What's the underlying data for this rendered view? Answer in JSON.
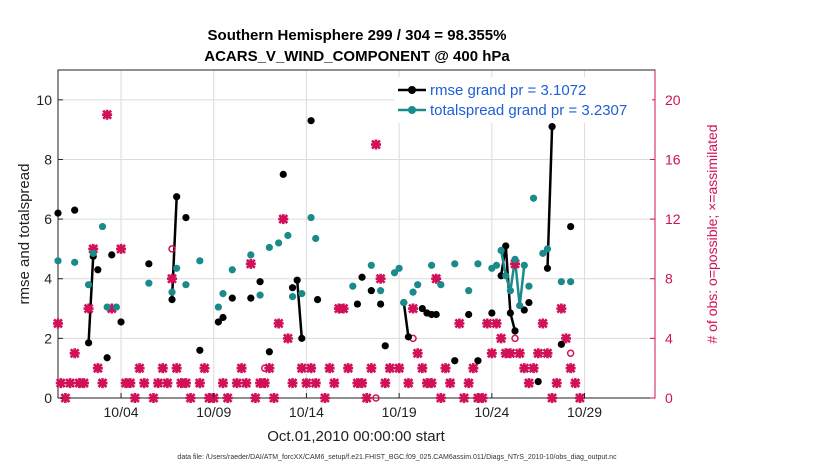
{
  "chart_data": {
    "type": "line",
    "title": "Southern Hemisphere 299 / 304 = 98.355%",
    "subtitle": "ACARS_V_WIND_COMPONENT @ 400 hPa",
    "xlabel": "Oct.01,2010 00:00:00 start",
    "ylabel": "rmse and totalspread",
    "y2label": "# of obs: o=possible; ×=assimilated",
    "footnote": "data file: /Users/raeder/DAI/ATM_forcXX/CAM6_setup/f.e21.FHIST_BGC.f09_025.CAM6assim.011/Diags_NTrS_2010-10/obs_diag_output.nc",
    "xlim": [
      0.6,
      32.8
    ],
    "ylim": [
      0,
      11
    ],
    "y2lim": [
      0,
      22
    ],
    "x_ticks": [
      {
        "x": 4,
        "label": "10/04"
      },
      {
        "x": 9,
        "label": "10/09"
      },
      {
        "x": 14,
        "label": "10/14"
      },
      {
        "x": 19,
        "label": "10/19"
      },
      {
        "x": 24,
        "label": "10/24"
      },
      {
        "x": 29,
        "label": "10/29"
      }
    ],
    "y_ticks": [
      0,
      2,
      4,
      6,
      8,
      10
    ],
    "y2_ticks": [
      0,
      4,
      8,
      12,
      16,
      20
    ],
    "grid": true,
    "legend_position": "top-right",
    "series": [
      {
        "name": "rmse grand pr = 3.1072",
        "color": "#000000",
        "marker": "circle",
        "points": [
          [
            0.6,
            6.2
          ],
          [
            1.5,
            6.3
          ],
          [
            2.25,
            1.85
          ],
          [
            2.5,
            4.75
          ],
          [
            2.75,
            4.3
          ],
          [
            3.25,
            1.35
          ],
          [
            3.5,
            4.8
          ],
          [
            4.0,
            2.55
          ],
          [
            5.5,
            4.5
          ],
          [
            6.75,
            3.3
          ],
          [
            7.0,
            6.75
          ],
          [
            7.5,
            6.05
          ],
          [
            8.25,
            1.6
          ],
          [
            9.25,
            2.55
          ],
          [
            9.5,
            2.7
          ],
          [
            10.0,
            3.35
          ],
          [
            11.0,
            3.35
          ],
          [
            11.5,
            3.9
          ],
          [
            12.0,
            1.55
          ],
          [
            12.75,
            7.5
          ],
          [
            13.25,
            3.7
          ],
          [
            13.5,
            3.95
          ],
          [
            13.75,
            2.0
          ],
          [
            14.25,
            9.3
          ],
          [
            14.6,
            3.3
          ],
          [
            16.75,
            3.15
          ],
          [
            17.0,
            4.05
          ],
          [
            17.5,
            3.6
          ],
          [
            18.0,
            3.15
          ],
          [
            18.25,
            1.75
          ],
          [
            19.25,
            3.2
          ],
          [
            19.5,
            2.05
          ],
          [
            20.25,
            3.0
          ],
          [
            20.5,
            2.85
          ],
          [
            20.75,
            2.8
          ],
          [
            21.0,
            2.8
          ],
          [
            22.0,
            1.25
          ],
          [
            22.75,
            2.8
          ],
          [
            23.25,
            1.25
          ],
          [
            24.0,
            2.85
          ],
          [
            24.5,
            4.1
          ],
          [
            24.75,
            5.1
          ],
          [
            25.0,
            2.85
          ],
          [
            25.25,
            2.25
          ],
          [
            25.75,
            2.95
          ],
          [
            26.0,
            3.2
          ],
          [
            26.5,
            0.55
          ],
          [
            27.0,
            4.35
          ],
          [
            27.25,
            9.1
          ],
          [
            27.75,
            1.8
          ],
          [
            28.25,
            5.75
          ]
        ],
        "segments": [
          [
            2.25,
            2.5
          ],
          [
            6.75,
            7.0
          ],
          [
            13.5,
            13.75
          ],
          [
            19.25,
            19.5
          ],
          [
            24.5,
            24.75,
            25.0,
            25.25
          ],
          [
            27.0,
            27.25
          ]
        ]
      },
      {
        "name": "totalspread grand pr = 3.2307",
        "color": "#1a8a8a",
        "marker": "circle",
        "points": [
          [
            0.6,
            4.6
          ],
          [
            1.5,
            4.55
          ],
          [
            2.25,
            3.8
          ],
          [
            2.5,
            4.85
          ],
          [
            3.0,
            5.75
          ],
          [
            3.25,
            3.05
          ],
          [
            3.75,
            3.05
          ],
          [
            5.5,
            3.85
          ],
          [
            6.75,
            3.55
          ],
          [
            7.0,
            4.35
          ],
          [
            7.5,
            3.8
          ],
          [
            8.25,
            4.6
          ],
          [
            9.25,
            3.05
          ],
          [
            9.5,
            3.5
          ],
          [
            10.0,
            4.3
          ],
          [
            11.0,
            4.8
          ],
          [
            11.5,
            3.45
          ],
          [
            12.0,
            5.05
          ],
          [
            12.5,
            5.2
          ],
          [
            13.0,
            5.45
          ],
          [
            13.25,
            3.4
          ],
          [
            13.75,
            3.5
          ],
          [
            14.25,
            6.05
          ],
          [
            14.5,
            5.35
          ],
          [
            16.5,
            3.75
          ],
          [
            17.5,
            4.45
          ],
          [
            18.0,
            3.6
          ],
          [
            18.75,
            4.2
          ],
          [
            19.0,
            4.35
          ],
          [
            19.25,
            3.2
          ],
          [
            19.75,
            3.55
          ],
          [
            20.0,
            3.8
          ],
          [
            20.75,
            4.45
          ],
          [
            21.25,
            3.8
          ],
          [
            22.0,
            4.5
          ],
          [
            22.75,
            3.6
          ],
          [
            23.25,
            4.5
          ],
          [
            24.0,
            4.35
          ],
          [
            24.25,
            4.45
          ],
          [
            24.5,
            4.95
          ],
          [
            24.75,
            4.1
          ],
          [
            25.0,
            3.6
          ],
          [
            25.25,
            4.65
          ],
          [
            25.5,
            3.1
          ],
          [
            25.75,
            4.45
          ],
          [
            26.0,
            3.75
          ],
          [
            26.25,
            6.7
          ],
          [
            26.75,
            4.85
          ],
          [
            27.0,
            5.0
          ],
          [
            27.75,
            3.9
          ],
          [
            28.25,
            3.9
          ]
        ],
        "segments": [
          [
            7.0,
            7.25
          ],
          [
            11.25,
            11.5
          ],
          [
            19.25,
            19.5
          ],
          [
            24.5,
            24.75,
            25.0,
            25.25,
            25.5,
            25.75
          ],
          [
            26.75,
            27.0
          ]
        ]
      }
    ],
    "obs_assimilated": {
      "name": "# of obs assimilated (×)",
      "color": "#d1105a",
      "axis": "right",
      "points": [
        [
          0.6,
          5
        ],
        [
          0.75,
          1
        ],
        [
          1.0,
          0
        ],
        [
          1.25,
          1
        ],
        [
          1.5,
          3
        ],
        [
          1.75,
          1
        ],
        [
          2.0,
          1
        ],
        [
          2.25,
          6
        ],
        [
          2.5,
          10
        ],
        [
          2.75,
          2
        ],
        [
          3.0,
          1
        ],
        [
          3.25,
          19
        ],
        [
          3.5,
          6
        ],
        [
          4.0,
          10
        ],
        [
          4.25,
          1
        ],
        [
          4.5,
          1
        ],
        [
          4.75,
          0
        ],
        [
          5.0,
          2
        ],
        [
          5.25,
          1
        ],
        [
          5.75,
          0
        ],
        [
          6.0,
          1
        ],
        [
          6.25,
          2
        ],
        [
          6.5,
          1
        ],
        [
          6.75,
          8
        ],
        [
          7.0,
          2
        ],
        [
          7.25,
          1
        ],
        [
          7.5,
          1
        ],
        [
          7.75,
          0
        ],
        [
          8.25,
          1
        ],
        [
          8.5,
          2
        ],
        [
          8.75,
          0
        ],
        [
          9.0,
          0
        ],
        [
          9.5,
          1
        ],
        [
          9.75,
          0
        ],
        [
          10.25,
          1
        ],
        [
          10.5,
          2
        ],
        [
          10.75,
          1
        ],
        [
          11.0,
          9
        ],
        [
          11.25,
          0
        ],
        [
          11.5,
          1
        ],
        [
          11.75,
          1
        ],
        [
          12.0,
          2
        ],
        [
          12.25,
          0
        ],
        [
          12.5,
          5
        ],
        [
          12.75,
          12
        ],
        [
          13.0,
          4
        ],
        [
          13.25,
          1
        ],
        [
          13.75,
          2
        ],
        [
          14.0,
          1
        ],
        [
          14.25,
          2
        ],
        [
          14.5,
          1
        ],
        [
          15.0,
          0
        ],
        [
          15.25,
          2
        ],
        [
          15.5,
          1
        ],
        [
          15.75,
          6
        ],
        [
          16.0,
          6
        ],
        [
          16.25,
          2
        ],
        [
          16.75,
          1
        ],
        [
          17.0,
          1
        ],
        [
          17.25,
          0
        ],
        [
          17.5,
          2
        ],
        [
          17.75,
          17
        ],
        [
          18.0,
          8
        ],
        [
          18.25,
          1
        ],
        [
          18.5,
          2
        ],
        [
          19.0,
          2
        ],
        [
          19.5,
          1
        ],
        [
          19.75,
          6
        ],
        [
          20.0,
          3
        ],
        [
          20.25,
          2
        ],
        [
          20.5,
          1
        ],
        [
          20.75,
          1
        ],
        [
          21.0,
          8
        ],
        [
          21.25,
          0
        ],
        [
          21.5,
          2
        ],
        [
          21.75,
          1
        ],
        [
          22.25,
          5
        ],
        [
          22.5,
          0
        ],
        [
          22.75,
          1
        ],
        [
          23.0,
          2
        ],
        [
          23.25,
          0
        ],
        [
          23.5,
          0
        ],
        [
          23.75,
          5
        ],
        [
          24.0,
          3
        ],
        [
          24.25,
          5
        ],
        [
          24.5,
          4
        ],
        [
          24.75,
          3
        ],
        [
          25.0,
          3
        ],
        [
          25.25,
          9
        ],
        [
          25.5,
          3
        ],
        [
          25.75,
          2
        ],
        [
          26.0,
          1
        ],
        [
          26.25,
          2
        ],
        [
          26.5,
          3
        ],
        [
          26.75,
          5
        ],
        [
          27.0,
          3
        ],
        [
          27.25,
          0
        ],
        [
          27.5,
          1
        ],
        [
          27.75,
          6
        ],
        [
          28.0,
          4
        ],
        [
          28.25,
          2
        ],
        [
          28.5,
          1
        ],
        [
          28.75,
          0
        ]
      ]
    },
    "obs_possible": {
      "name": "# of obs possible (o)",
      "color": "#d1105a",
      "axis": "right",
      "points": [
        [
          6.75,
          10
        ],
        [
          11.75,
          2
        ],
        [
          17.75,
          0
        ],
        [
          19.75,
          4
        ],
        [
          25.25,
          4
        ],
        [
          28.25,
          3
        ]
      ]
    }
  }
}
